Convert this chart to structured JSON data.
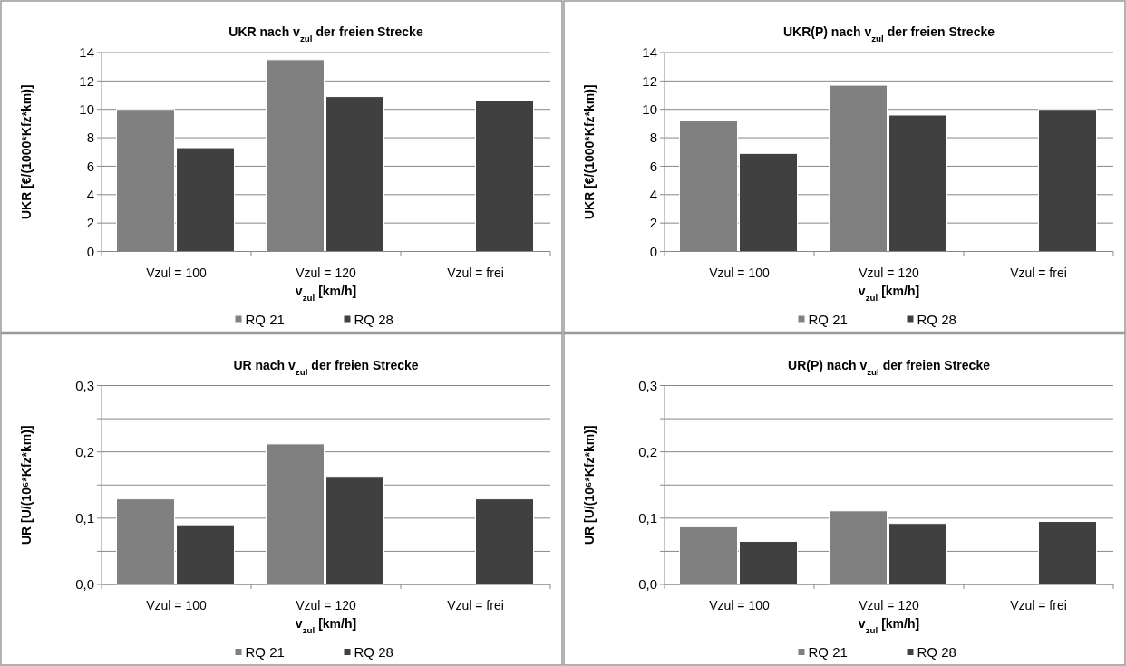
{
  "chart_data": [
    {
      "type": "bar",
      "title": "UKR nach v$_{zul}$ der freien Strecke",
      "xlabel": "v$_{zul}$ [km/h]",
      "ylabel": "UKR [€/(1000*Kfz*km)]",
      "categories": [
        "Vzul = 100",
        "Vzul = 120",
        "Vzul = frei"
      ],
      "series": [
        {
          "name": "RQ 21",
          "color": "#808080",
          "values": [
            10.0,
            13.5,
            null
          ]
        },
        {
          "name": "RQ 28",
          "color": "#404040",
          "values": [
            7.3,
            10.9,
            10.6
          ]
        }
      ],
      "ylim": [
        0,
        14
      ],
      "yticks": [
        0,
        2,
        4,
        6,
        8,
        10,
        12,
        14
      ],
      "grid": "y",
      "legend": "bottom"
    },
    {
      "type": "bar",
      "title": "UKR(P) nach v$_{zul}$ der freien Strecke",
      "xlabel": "v$_{zul}$ [km/h]",
      "ylabel": "UKR [€/(1000*Kfz*km)]",
      "categories": [
        "Vzul = 100",
        "Vzul = 120",
        "Vzul = frei"
      ],
      "series": [
        {
          "name": "RQ 21",
          "color": "#808080",
          "values": [
            9.2,
            11.7,
            null
          ]
        },
        {
          "name": "RQ 28",
          "color": "#404040",
          "values": [
            6.9,
            9.6,
            10.0
          ]
        }
      ],
      "ylim": [
        0,
        14
      ],
      "yticks": [
        0,
        2,
        4,
        6,
        8,
        10,
        12,
        14
      ],
      "grid": "y",
      "legend": "bottom"
    },
    {
      "type": "bar",
      "title": "UR nach v$_{zul}$ der freien Strecke",
      "xlabel": "v$_{zul}$ [km/h]",
      "ylabel": "UR [U/(10⁶*Kfz*km)]",
      "categories": [
        "Vzul = 100",
        "Vzul = 120",
        "Vzul = frei"
      ],
      "series": [
        {
          "name": "RQ 21",
          "color": "#808080",
          "values": [
            0.129,
            0.212,
            null
          ]
        },
        {
          "name": "RQ 28",
          "color": "#404040",
          "values": [
            0.09,
            0.163,
            0.129
          ]
        }
      ],
      "ylim": [
        0,
        0.3
      ],
      "yticks": [
        {
          "value": 0,
          "label": "0,0"
        },
        {
          "value": 0.05,
          "label": null
        },
        {
          "value": 0.1,
          "label": "0,1"
        },
        {
          "value": 0.15,
          "label": null
        },
        {
          "value": 0.2,
          "label": "0,2"
        },
        {
          "value": 0.25,
          "label": null
        },
        {
          "value": 0.3,
          "label": "0,3"
        }
      ],
      "grid": "y",
      "legend": "bottom"
    },
    {
      "type": "bar",
      "title": "UR(P) nach v$_{zul}$ der freien Strecke",
      "xlabel": "v$_{zul}$ [km/h]",
      "ylabel": "UR [U/(10⁶*Kfz*km)]",
      "categories": [
        "Vzul = 100",
        "Vzul = 120",
        "Vzul = frei"
      ],
      "series": [
        {
          "name": "RQ 21",
          "color": "#808080",
          "values": [
            0.087,
            0.111,
            null
          ]
        },
        {
          "name": "RQ 28",
          "color": "#404040",
          "values": [
            0.065,
            0.092,
            0.095
          ]
        }
      ],
      "ylim": [
        0,
        0.3
      ],
      "yticks": [
        {
          "value": 0,
          "label": "0,0"
        },
        {
          "value": 0.05,
          "label": null
        },
        {
          "value": 0.1,
          "label": "0,1"
        },
        {
          "value": 0.15,
          "label": null
        },
        {
          "value": 0.2,
          "label": "0,2"
        },
        {
          "value": 0.25,
          "label": null
        },
        {
          "value": 0.3,
          "label": "0,3"
        }
      ],
      "grid": "y",
      "legend": "bottom"
    }
  ]
}
